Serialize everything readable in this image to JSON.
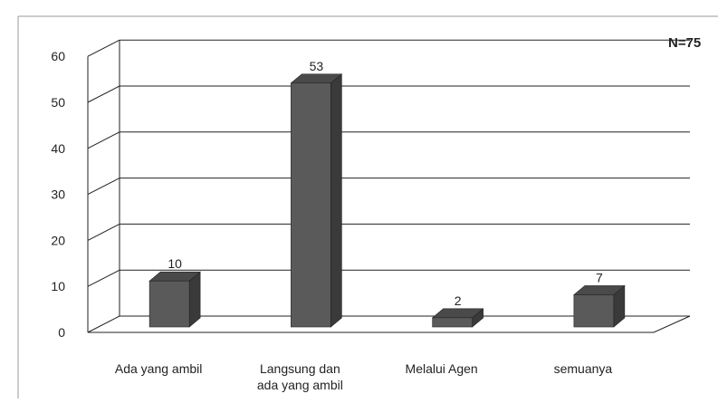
{
  "chart_data": {
    "type": "bar",
    "style": "3d-column",
    "categories": [
      [
        "Ada yang ambil"
      ],
      [
        "Langsung dan",
        "ada yang ambil"
      ],
      [
        "Melalui Agen"
      ],
      [
        "semuanya"
      ]
    ],
    "values": [
      10,
      53,
      2,
      7
    ],
    "data_labels": [
      "10",
      "53",
      "2",
      "7"
    ],
    "annotation": "N=75",
    "ylim": [
      0,
      60
    ],
    "yticks": [
      "0",
      "10",
      "20",
      "30",
      "40",
      "50",
      "60"
    ],
    "grid": true,
    "legend": "none",
    "colors": {
      "bar_front": "#5a5a5a",
      "bar_side": "#3a3a3a",
      "bar_top": "#4a4a4a",
      "grid": "#222222",
      "text": "#222222"
    }
  }
}
